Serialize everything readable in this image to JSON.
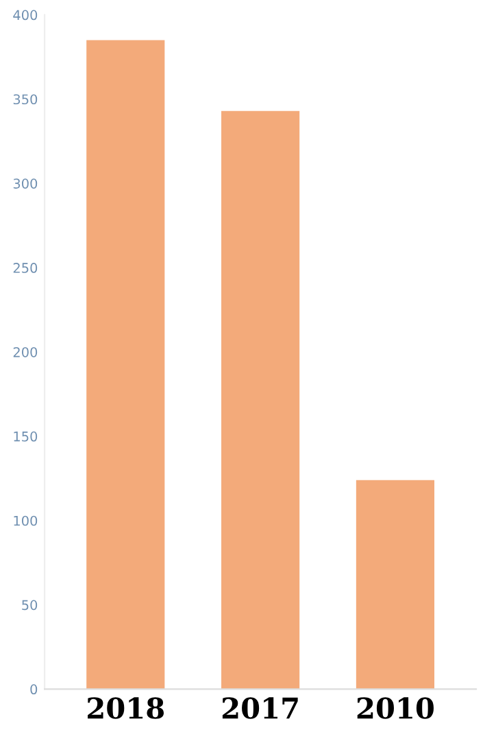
{
  "chart_data": {
    "type": "bar",
    "categories": [
      "2018",
      "2017",
      "2010"
    ],
    "values": [
      385,
      343,
      124
    ],
    "color": "#f3aa7a",
    "ylim": [
      0,
      400
    ],
    "yticks": [
      0,
      50,
      100,
      150,
      200,
      250,
      300,
      350,
      400
    ],
    "grid": false
  }
}
